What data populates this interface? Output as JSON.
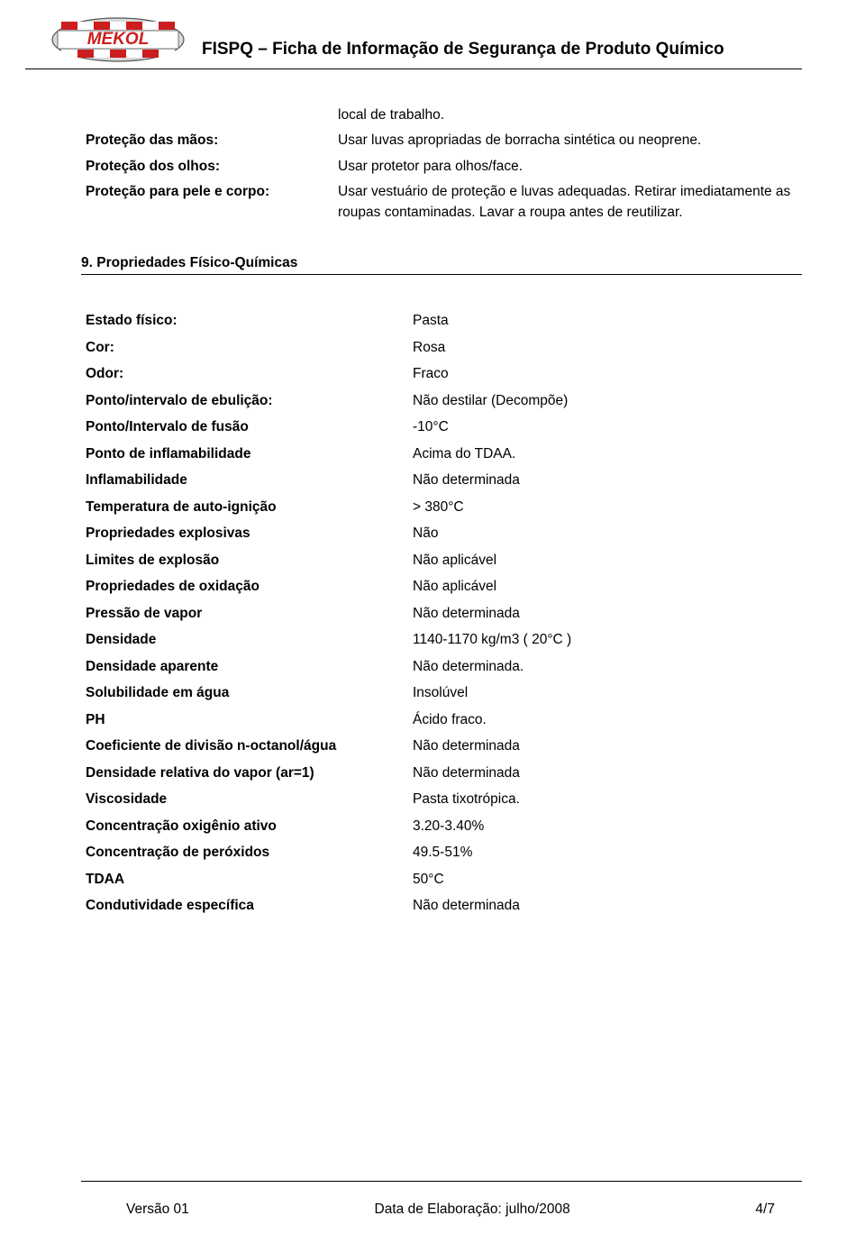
{
  "header": {
    "title": "FISPQ – Ficha de Informação de Segurança de Produto Químico",
    "logo_text": "MEKOL",
    "logo_colors": {
      "red": "#cc1e1e",
      "white": "#ffffff",
      "gray": "#d8d8d8",
      "border": "#555555"
    }
  },
  "intro": {
    "pre_value": "local de trabalho.",
    "rows": [
      {
        "label": "Proteção das mãos:",
        "value": "Usar luvas apropriadas de borracha sintética ou neoprene."
      },
      {
        "label": "Proteção dos olhos:",
        "value": "Usar protetor para olhos/face."
      },
      {
        "label": "Proteção para pele e corpo:",
        "value": "Usar vestuário de proteção e luvas adequadas. Retirar imediatamente as roupas contaminadas. Lavar a roupa antes de reutilizar."
      }
    ]
  },
  "section9": {
    "title": "9. Propriedades Físico-Químicas",
    "properties": [
      {
        "label": "Estado físico:",
        "value": "Pasta"
      },
      {
        "label": "Cor:",
        "value": "Rosa"
      },
      {
        "label": "Odor:",
        "value": "Fraco"
      },
      {
        "label": "Ponto/intervalo de ebulição:",
        "value": "Não destilar (Decompõe)"
      },
      {
        "label": "Ponto/Intervalo de fusão",
        "value": "-10°C"
      },
      {
        "label": "Ponto de inflamabilidade",
        "value": "Acima do TDAA."
      },
      {
        "label": "Inflamabilidade",
        "value": "Não determinada"
      },
      {
        "label": "Temperatura de auto-ignição",
        "value": "> 380°C"
      },
      {
        "label": "Propriedades explosivas",
        "value": "Não"
      },
      {
        "label": "Limites de explosão",
        "value": "Não aplicável"
      },
      {
        "label": "Propriedades de oxidação",
        "value": "Não aplicável"
      },
      {
        "label": "Pressão de vapor",
        "value": "Não determinada"
      },
      {
        "label": "Densidade",
        "value": "1140-1170 kg/m3 ( 20°C )"
      },
      {
        "label": "Densidade aparente",
        "value": "Não determinada."
      },
      {
        "label": "Solubilidade em água",
        "value": "Insolúvel"
      },
      {
        "label": "PH",
        "value": "Ácido fraco."
      },
      {
        "label": "Coeficiente de divisão n-octanol/água",
        "value": "Não determinada"
      },
      {
        "label": "Densidade relativa do vapor (ar=1)",
        "value": "Não determinada"
      },
      {
        "label": "Viscosidade",
        "value": "Pasta tixotrópica."
      },
      {
        "label": "Concentração oxigênio ativo",
        "value": "3.20-3.40%"
      },
      {
        "label": "Concentração de peróxidos",
        "value": "49.5-51%"
      },
      {
        "label": "TDAA",
        "value": "50°C"
      },
      {
        "label": "Condutividade específica",
        "value": "Não determinada"
      }
    ]
  },
  "footer": {
    "version": "Versão 01",
    "date": "Data de Elaboração: julho/2008",
    "page": "4/7"
  }
}
